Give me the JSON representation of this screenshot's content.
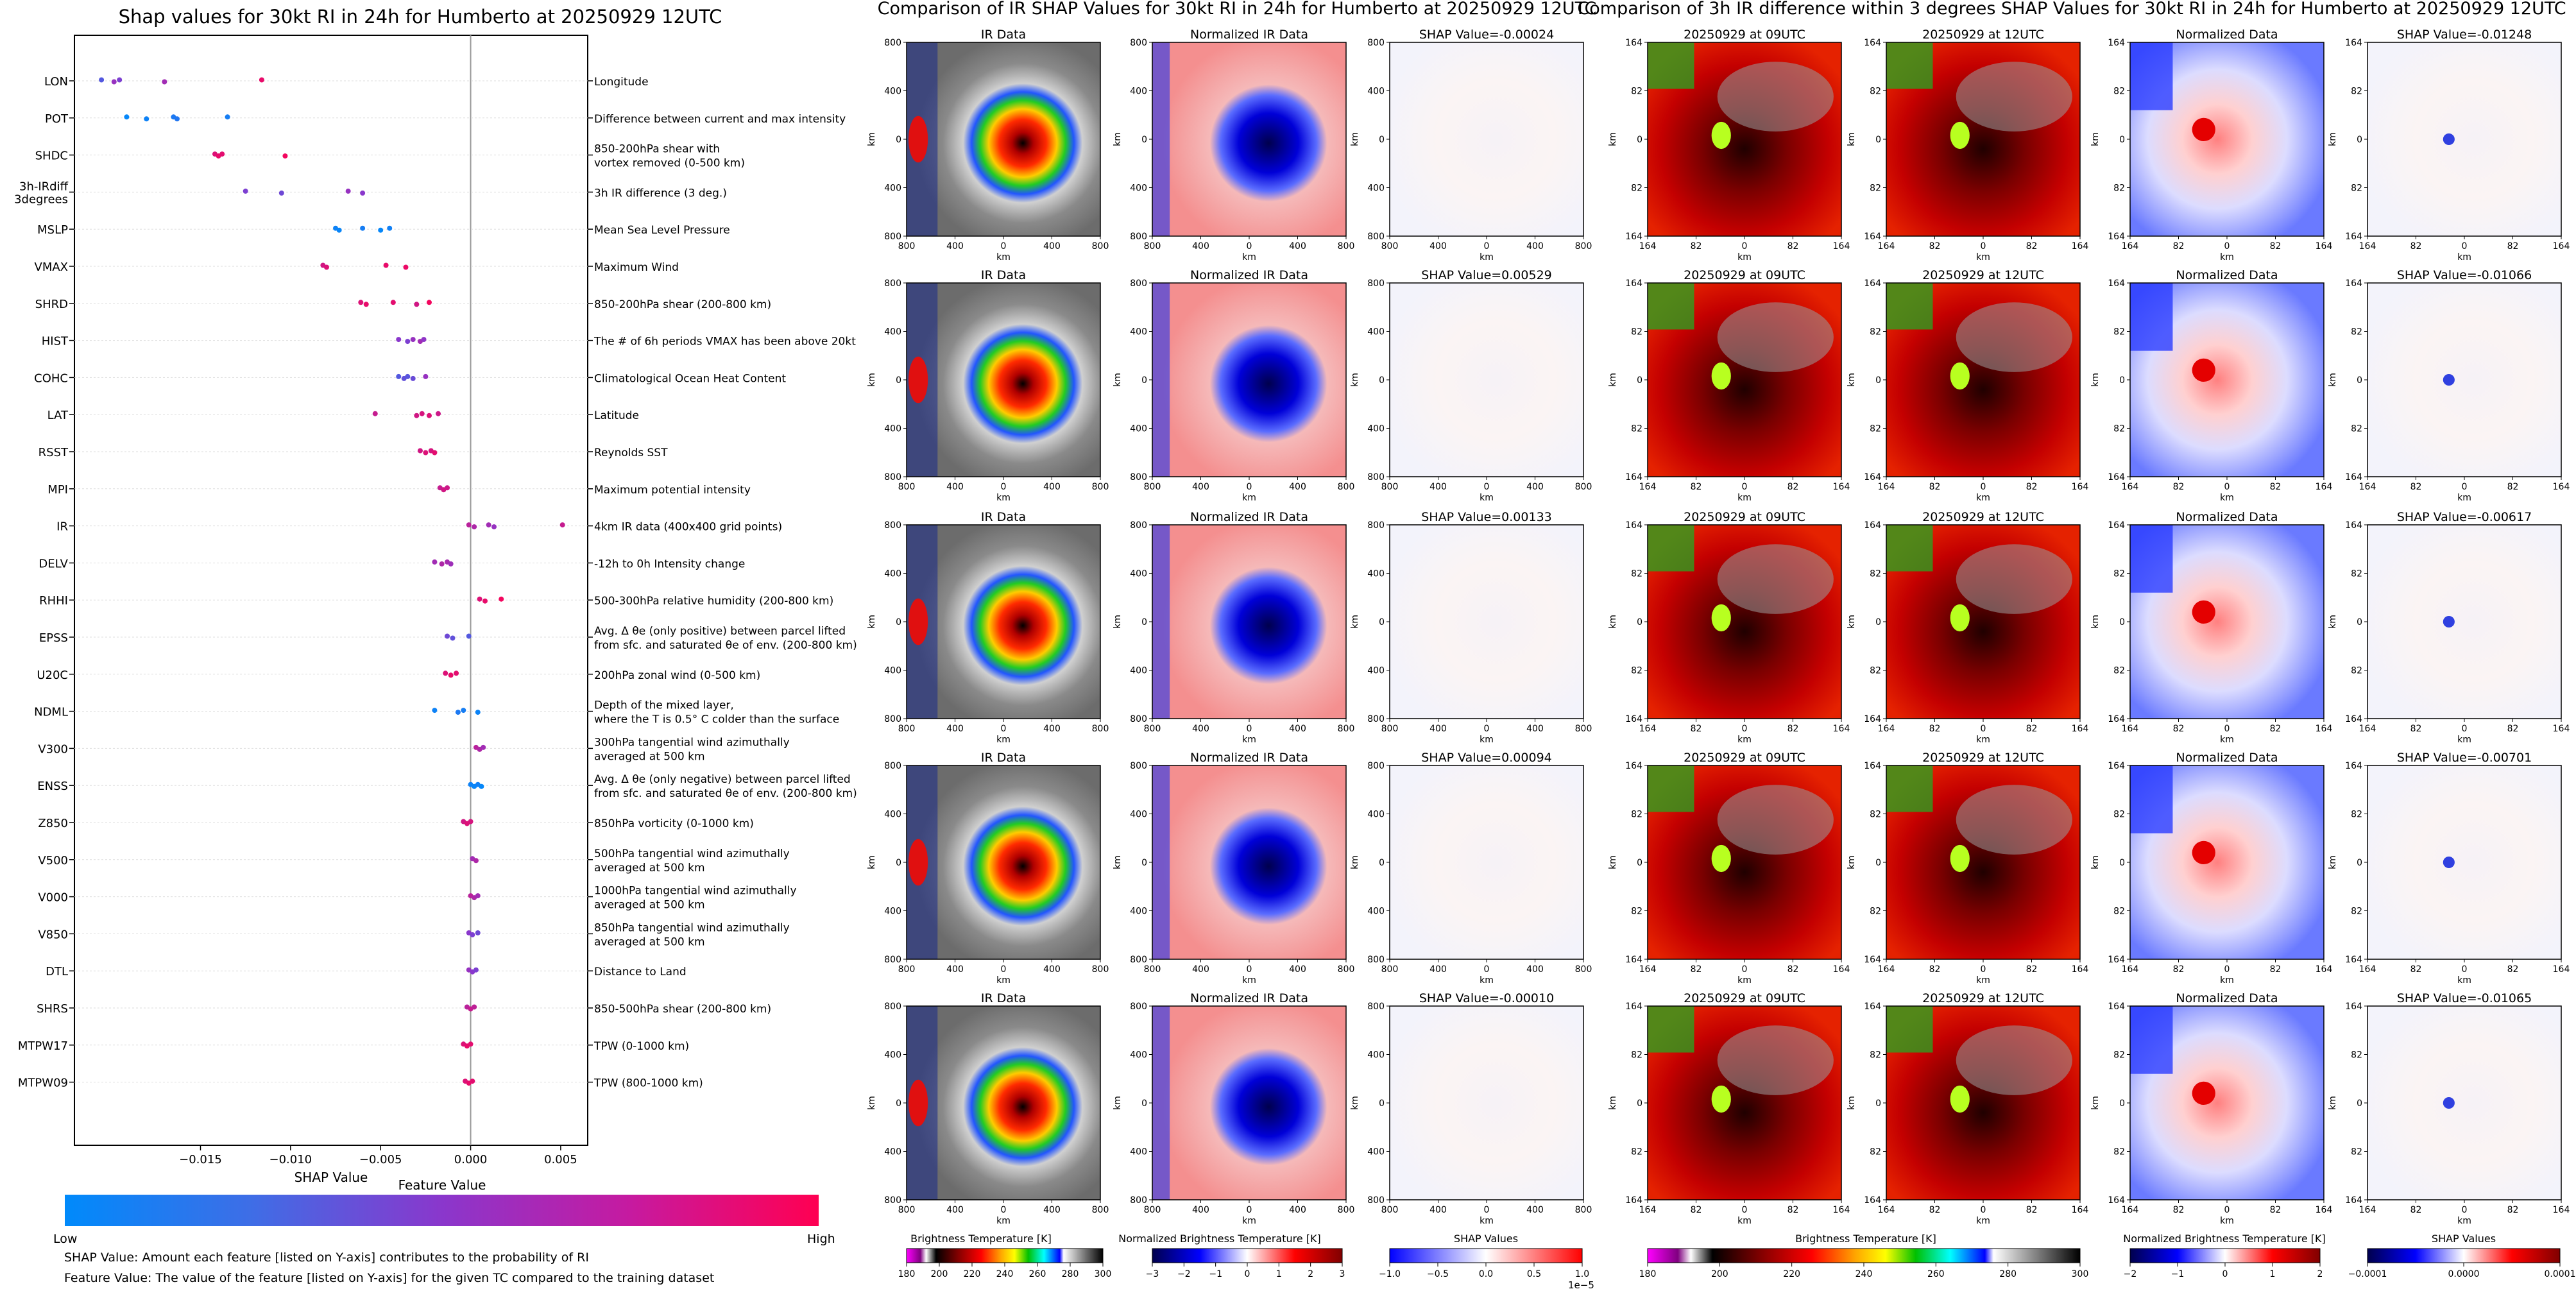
{
  "figure": {
    "background": "#ffffff"
  },
  "shap_panel": {
    "title": "Shap values for 30kt RI in 24h for Humberto at 20250929 12UTC",
    "xlabel": "SHAP Value",
    "colorbar_title": "Feature Value",
    "colorbar_low": "Low",
    "colorbar_high": "High",
    "colorbar_colors": [
      "#008afb",
      "#7a3fd0",
      "#c21ea6",
      "#ff0052"
    ],
    "note1": "SHAP Value: Amount each feature [listed on Y-axis] contributes to the probability of RI",
    "note2": "Feature Value: The value of the feature [listed on Y-axis] for the given TC compared to the training dataset"
  },
  "chart_data": [
    {
      "type": "scatter",
      "title": "Shap values for 30kt RI in 24h for Humberto at 20250929 12UTC",
      "xlabel": "SHAP Value",
      "xlim": [
        -0.022,
        0.0065
      ],
      "xticks": [
        -0.015,
        -0.01,
        -0.005,
        0.0,
        0.005
      ],
      "xtick_labels": [
        "−0.015",
        "−0.010",
        "−0.005",
        "0.000",
        "0.005"
      ],
      "zero_line": 0.0,
      "features": [
        {
          "code": "LON",
          "desc": [
            "Longitude"
          ],
          "points": [
            [
              -0.0205,
              0.3
            ],
            [
              -0.0198,
              0.55
            ],
            [
              -0.0195,
              0.45
            ],
            [
              -0.017,
              0.6
            ],
            [
              -0.0116,
              0.9
            ]
          ]
        },
        {
          "code": "POT",
          "desc": [
            "Difference between current and max intensity"
          ],
          "points": [
            [
              -0.0191,
              0.02
            ],
            [
              -0.018,
              0.05
            ],
            [
              -0.0165,
              0.1
            ],
            [
              -0.0163,
              0.12
            ],
            [
              -0.0135,
              0.08
            ]
          ]
        },
        {
          "code": "SHDC",
          "desc": [
            "850-200hPa shear with",
            "vortex removed (0-500 km)"
          ],
          "points": [
            [
              -0.0142,
              0.85
            ],
            [
              -0.014,
              0.9
            ],
            [
              -0.0138,
              0.88
            ],
            [
              -0.0103,
              0.95
            ]
          ]
        },
        {
          "code": "3h-IRdiff\n3degrees",
          "desc": [
            "3h IR difference (3 deg.)"
          ],
          "points": [
            [
              -0.0125,
              0.45
            ],
            [
              -0.0105,
              0.4
            ],
            [
              -0.0068,
              0.55
            ],
            [
              -0.006,
              0.5
            ]
          ]
        },
        {
          "code": "MSLP",
          "desc": [
            "Mean Sea Level Pressure"
          ],
          "points": [
            [
              -0.0075,
              0.05
            ],
            [
              -0.0073,
              0.03
            ],
            [
              -0.006,
              0.08
            ],
            [
              -0.005,
              0.02
            ],
            [
              -0.0045,
              0.06
            ]
          ]
        },
        {
          "code": "VMAX",
          "desc": [
            "Maximum Wind"
          ],
          "points": [
            [
              -0.0082,
              0.8
            ],
            [
              -0.008,
              0.85
            ],
            [
              -0.0047,
              0.9
            ],
            [
              -0.0036,
              0.92
            ]
          ]
        },
        {
          "code": "SHRD",
          "desc": [
            "850-200hPa shear (200-800 km)"
          ],
          "points": [
            [
              -0.0061,
              0.85
            ],
            [
              -0.0058,
              0.9
            ],
            [
              -0.0043,
              0.88
            ],
            [
              -0.003,
              0.8
            ],
            [
              -0.0023,
              0.95
            ]
          ]
        },
        {
          "code": "HIST",
          "desc": [
            "The # of 6h periods VMAX has been above 20kt"
          ],
          "points": [
            [
              -0.004,
              0.5
            ],
            [
              -0.0035,
              0.45
            ],
            [
              -0.0032,
              0.55
            ],
            [
              -0.0028,
              0.6
            ],
            [
              -0.0026,
              0.52
            ]
          ]
        },
        {
          "code": "COHC",
          "desc": [
            "Climatological Ocean Heat Content"
          ],
          "points": [
            [
              -0.004,
              0.3
            ],
            [
              -0.0037,
              0.35
            ],
            [
              -0.0035,
              0.32
            ],
            [
              -0.0032,
              0.38
            ],
            [
              -0.0025,
              0.55
            ]
          ]
        },
        {
          "code": "LAT",
          "desc": [
            "Latitude"
          ],
          "points": [
            [
              -0.0053,
              0.75
            ],
            [
              -0.003,
              0.8
            ],
            [
              -0.0027,
              0.82
            ],
            [
              -0.0023,
              0.85
            ],
            [
              -0.0018,
              0.78
            ]
          ]
        },
        {
          "code": "RSST",
          "desc": [
            "Reynolds SST"
          ],
          "points": [
            [
              -0.0028,
              0.8
            ],
            [
              -0.0025,
              0.85
            ],
            [
              -0.0022,
              0.82
            ],
            [
              -0.002,
              0.88
            ]
          ]
        },
        {
          "code": "MPI",
          "desc": [
            "Maximum potential intensity"
          ],
          "points": [
            [
              -0.0017,
              0.75
            ],
            [
              -0.0015,
              0.8
            ],
            [
              -0.0013,
              0.78
            ]
          ]
        },
        {
          "code": "IR",
          "desc": [
            "4km IR data (400x400 grid points)"
          ],
          "points": [
            [
              -0.0001,
              0.7
            ],
            [
              0.0002,
              0.65
            ],
            [
              0.001,
              0.6
            ],
            [
              0.0013,
              0.55
            ],
            [
              0.0051,
              0.75
            ]
          ]
        },
        {
          "code": "DELV",
          "desc": [
            "-12h to 0h Intensity change"
          ],
          "points": [
            [
              -0.002,
              0.6
            ],
            [
              -0.0016,
              0.65
            ],
            [
              -0.0013,
              0.62
            ],
            [
              -0.0011,
              0.58
            ]
          ]
        },
        {
          "code": "RHHI",
          "desc": [
            "500-300hPa relative humidity (200-800 km)"
          ],
          "points": [
            [
              0.0005,
              0.85
            ],
            [
              0.0008,
              0.9
            ],
            [
              0.0017,
              0.95
            ]
          ]
        },
        {
          "code": "EPSS",
          "desc": [
            "Avg. Δ θe (only positive) between parcel lifted",
            "from sfc. and saturated θe of env. (200-800 km)"
          ],
          "points": [
            [
              -0.0013,
              0.4
            ],
            [
              -0.001,
              0.35
            ],
            [
              -0.0001,
              0.3
            ]
          ]
        },
        {
          "code": "U20C",
          "desc": [
            "200hPa zonal wind (0-500 km)"
          ],
          "points": [
            [
              -0.0014,
              0.85
            ],
            [
              -0.0011,
              0.9
            ],
            [
              -0.0008,
              0.88
            ]
          ]
        },
        {
          "code": "NDML",
          "desc": [
            "Depth of the mixed layer,",
            "where the T is 0.5° C colder than the surface"
          ],
          "points": [
            [
              -0.002,
              0.05
            ],
            [
              -0.0007,
              0.1
            ],
            [
              -0.0004,
              0.08
            ],
            [
              0.0004,
              0.04
            ]
          ]
        },
        {
          "code": "V300",
          "desc": [
            "300hPa tangential wind azimuthally",
            "averaged at 500 km"
          ],
          "points": [
            [
              0.0003,
              0.7
            ],
            [
              0.0005,
              0.65
            ],
            [
              0.0007,
              0.6
            ]
          ]
        },
        {
          "code": "ENSS",
          "desc": [
            "Avg. Δ θe (only negative) between parcel lifted",
            "from sfc. and saturated θe of env. (200-800 km)"
          ],
          "points": [
            [
              0.0,
              0.05
            ],
            [
              0.0002,
              0.03
            ],
            [
              0.0004,
              0.06
            ],
            [
              0.0006,
              0.02
            ]
          ]
        },
        {
          "code": "Z850",
          "desc": [
            "850hPa vorticity (0-1000 km)"
          ],
          "points": [
            [
              -0.0004,
              0.8
            ],
            [
              -0.0002,
              0.85
            ],
            [
              0.0,
              0.82
            ]
          ]
        },
        {
          "code": "V500",
          "desc": [
            "500hPa tangential wind azimuthally",
            "averaged at 500 km"
          ],
          "points": [
            [
              0.0001,
              0.6
            ],
            [
              0.0003,
              0.65
            ]
          ]
        },
        {
          "code": "V000",
          "desc": [
            "1000hPa tangential wind azimuthally",
            "averaged at 500 km"
          ],
          "points": [
            [
              0.0,
              0.7
            ],
            [
              0.0002,
              0.65
            ],
            [
              0.0004,
              0.6
            ]
          ]
        },
        {
          "code": "V850",
          "desc": [
            "850hPa tangential wind azimuthally",
            "averaged at 500 km"
          ],
          "points": [
            [
              -0.0001,
              0.5
            ],
            [
              0.0001,
              0.45
            ],
            [
              0.0004,
              0.4
            ]
          ]
        },
        {
          "code": "DTL",
          "desc": [
            "Distance to Land"
          ],
          "points": [
            [
              -0.0001,
              0.55
            ],
            [
              0.0001,
              0.5
            ],
            [
              0.0003,
              0.45
            ]
          ]
        },
        {
          "code": "SHRS",
          "desc": [
            "850-500hPa shear (200-800 km)"
          ],
          "points": [
            [
              -0.0002,
              0.7
            ],
            [
              0.0,
              0.75
            ],
            [
              0.0002,
              0.72
            ]
          ]
        },
        {
          "code": "MTPW17",
          "desc": [
            "TPW (0-1000 km)"
          ],
          "points": [
            [
              -0.0004,
              0.85
            ],
            [
              -0.0002,
              0.9
            ],
            [
              0.0,
              0.88
            ]
          ]
        },
        {
          "code": "MTPW09",
          "desc": [
            "TPW (800-1000 km)"
          ],
          "points": [
            [
              -0.0003,
              0.85
            ],
            [
              -0.0001,
              0.9
            ],
            [
              0.0001,
              0.88
            ]
          ]
        }
      ]
    }
  ],
  "ir_section": {
    "title": "Comparison of IR SHAP Values for 30kt RI in 24h for Humberto at 20250929 12UTC",
    "col_titles": [
      "IR Data",
      "Normalized IR Data"
    ],
    "shap_titles": [
      "SHAP Value=-0.00024",
      "SHAP Value=0.00529",
      "SHAP Value=0.00133",
      "SHAP Value=0.00094",
      "SHAP Value=-0.00010"
    ],
    "axis_label": "km",
    "ticks": [
      "800",
      "400",
      "0",
      "400",
      "800"
    ],
    "colorbars": [
      {
        "label": "Brightness Temperature [K]",
        "ticks": [
          "180",
          "200",
          "220",
          "240",
          "260",
          "280",
          "300"
        ]
      },
      {
        "label": "Normalized Brightness Temperature [K]",
        "ticks": [
          "−3",
          "−2",
          "−1",
          "0",
          "1",
          "2",
          "3"
        ]
      },
      {
        "label": "SHAP Values",
        "ticks": [
          "−1.0",
          "−0.5",
          "0.0",
          "0.5",
          "1.0"
        ],
        "offset": "1e−5"
      }
    ]
  },
  "diff_section": {
    "title": "Comparison of 3h IR difference within 3 degrees SHAP Values for 30kt RI in 24h for Humberto at 20250929 12UTC",
    "col_titles": [
      "20250929 at 09UTC",
      "20250929 at 12UTC",
      "Normalized Data"
    ],
    "shap_titles": [
      "SHAP Value=-0.01248",
      "SHAP Value=-0.01066",
      "SHAP Value=-0.00617",
      "SHAP Value=-0.00701",
      "SHAP Value=-0.01065"
    ],
    "axis_label": "km",
    "ticks": [
      "164",
      "82",
      "0",
      "82",
      "164"
    ],
    "colorbars": [
      {
        "label": "Brightness Temperature [K]",
        "ticks": [
          "180",
          "200",
          "220",
          "240",
          "260",
          "280",
          "300"
        ]
      },
      {
        "label": "Normalized Brightness Temperature [K]",
        "ticks": [
          "−2",
          "−1",
          "0",
          "1",
          "2"
        ]
      },
      {
        "label": "SHAP Values",
        "ticks": [
          "−0.0001",
          "0.0000",
          "0.0001"
        ]
      }
    ]
  }
}
